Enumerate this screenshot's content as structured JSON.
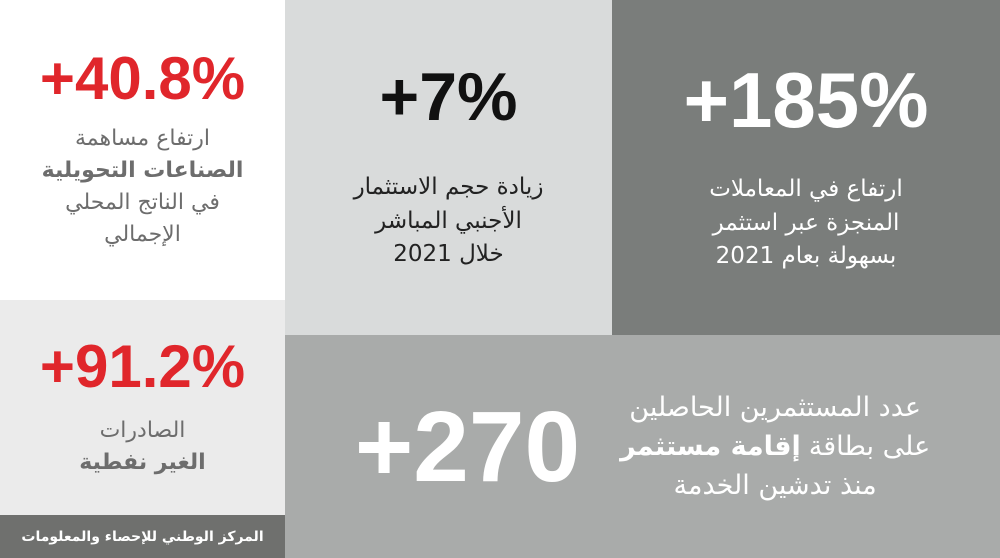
{
  "tiles": [
    {
      "value": "+40.8%",
      "lines": [
        [
          {
            "text": "ارتفاع مساهمة",
            "bold": false
          }
        ],
        [
          {
            "text": "الصناعات التحويلية",
            "bold": true
          }
        ],
        [
          {
            "text": "في الناتج المحلي",
            "bold": false
          }
        ],
        [
          {
            "text": "الإجمالي",
            "bold": false
          }
        ]
      ]
    },
    {
      "value": "+7%",
      "lines": [
        [
          {
            "text": "زيادة حجم الاستثمار",
            "bold": false
          }
        ],
        [
          {
            "text": "الأجنبي المباشر",
            "bold": false
          }
        ],
        [
          {
            "text": "خلال 2021",
            "bold": false
          }
        ]
      ]
    },
    {
      "value": "+185%",
      "lines": [
        [
          {
            "text": "ارتفاع في المعاملات",
            "bold": false
          }
        ],
        [
          {
            "text": "المنجزة عبر استثمر",
            "bold": false
          }
        ],
        [
          {
            "text": "بسهولة بعام 2021",
            "bold": false
          }
        ]
      ]
    },
    {
      "value": "+91.2%",
      "lines": [
        [
          {
            "text": "الصادرات",
            "bold": false
          }
        ],
        [
          {
            "text": "الغير نفطية",
            "bold": true
          }
        ]
      ]
    },
    {
      "value": "+270",
      "lines": [
        [
          {
            "text": "عدد المستثمرين الحاصلين",
            "bold": false
          }
        ],
        [
          {
            "text": "على بطاقة",
            "bold": false
          },
          {
            "text": "إقامة مستثمر",
            "bold": true
          }
        ],
        [
          {
            "text": "منذ تدشين الخدمة",
            "bold": false
          }
        ]
      ]
    }
  ],
  "footer": "المركز الوطني للإحصاء والمعلومات"
}
